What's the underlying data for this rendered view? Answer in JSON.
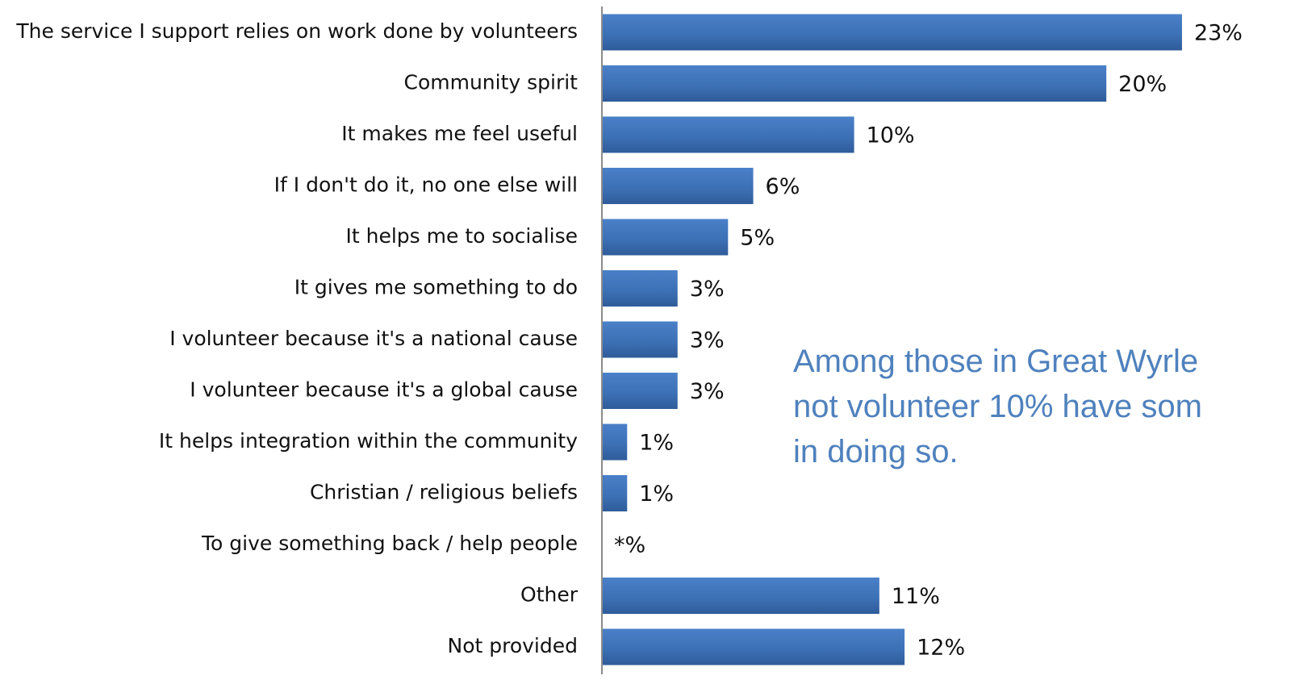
{
  "chart_data": {
    "type": "bar",
    "orientation": "horizontal",
    "categories": [
      "The service I support relies on work done by volunteers",
      "Community spirit",
      "It makes me feel useful",
      "If I don't do it, no one else will",
      "It helps me to socialise",
      "It gives me something to do",
      "I volunteer because it's a national cause",
      "I volunteer because it's a global cause",
      "It helps integration within the community",
      "Christian / religious beliefs",
      "To give something back / help people",
      "Other",
      "Not provided"
    ],
    "values": [
      23,
      20,
      10,
      6,
      5,
      3,
      3,
      3,
      1,
      1,
      0,
      11,
      12
    ],
    "value_labels": [
      "23%",
      "20%",
      "10%",
      "6%",
      "5%",
      "3%",
      "3%",
      "3%",
      "1%",
      "1%",
      "*%",
      "11%",
      "12%"
    ],
    "xlim": [
      0,
      27
    ],
    "bar_color": "#3f73b8",
    "grid": false,
    "legend": "none"
  },
  "annotation": {
    "lines": [
      "Among those in Great Wyrle",
      "not volunteer 10% have som",
      "in doing so."
    ],
    "color": "#4f81bd"
  }
}
